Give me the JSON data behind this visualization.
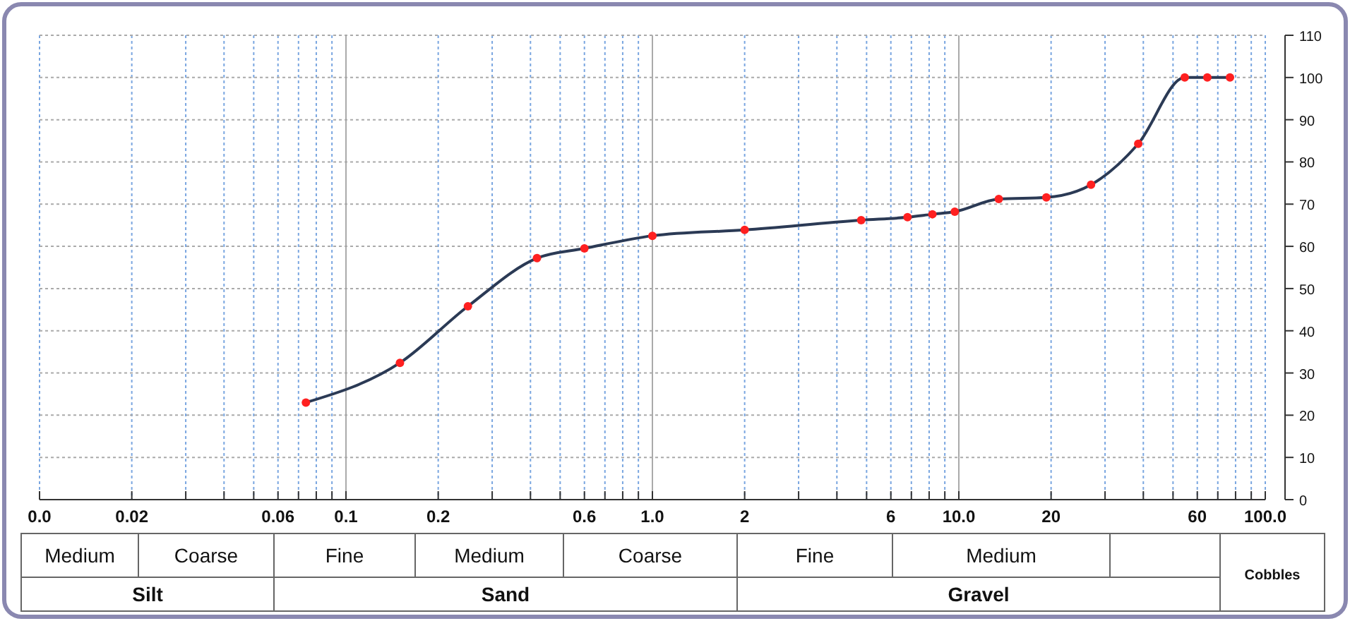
{
  "chart_data": {
    "type": "line",
    "log": "x",
    "grid": true,
    "marker": "circle",
    "line_style": "solid",
    "xlim": [
      0.01,
      100
    ],
    "ylim": [
      0,
      110
    ],
    "xticks": [
      {
        "value": 0.01,
        "label": "0.0"
      },
      0.02,
      {
        "value": 0.03,
        "label": null
      },
      {
        "value": 0.04,
        "label": null
      },
      {
        "value": 0.05,
        "label": null
      },
      0.06,
      {
        "value": 0.07,
        "label": null
      },
      {
        "value": 0.08,
        "label": null
      },
      {
        "value": 0.09,
        "label": null
      },
      0.1,
      0.2,
      {
        "value": 0.3,
        "label": null
      },
      {
        "value": 0.4,
        "label": null
      },
      {
        "value": 0.5,
        "label": null
      },
      0.6,
      {
        "value": 0.7,
        "label": null
      },
      {
        "value": 0.8,
        "label": null
      },
      {
        "value": 0.9,
        "label": null
      },
      {
        "value": 1,
        "label": "1.0"
      },
      2,
      {
        "value": 3,
        "label": null
      },
      {
        "value": 4,
        "label": null
      },
      {
        "value": 5,
        "label": null
      },
      6,
      {
        "value": 7,
        "label": null
      },
      {
        "value": 8,
        "label": null
      },
      {
        "value": 9,
        "label": null
      },
      {
        "value": 10,
        "label": "10.0"
      },
      20,
      {
        "value": 30,
        "label": null
      },
      {
        "value": 40,
        "label": null
      },
      {
        "value": 50,
        "label": null
      },
      60,
      {
        "value": 70,
        "label": null
      },
      {
        "value": 80,
        "label": null
      },
      {
        "value": 90,
        "label": null
      },
      {
        "value": 100,
        "label": "100.0"
      }
    ],
    "yticks": [
      0,
      10,
      20,
      30,
      40,
      50,
      60,
      70,
      80,
      90,
      100,
      110
    ],
    "x": [
      0.074,
      0.15,
      0.25,
      0.42,
      0.6,
      1.0,
      2.0,
      4.8,
      6.8,
      8.2,
      9.7,
      13.5,
      19.3,
      27,
      38.5,
      54.6,
      64.7,
      76.7
    ],
    "series": [
      {
        "marker": "none",
        "color": "#2b3a55",
        "values": [
          23,
          32.4,
          45.8,
          57.2,
          59.5,
          62.5,
          63.9,
          66.2,
          66.9,
          67.6,
          68.2,
          71.2,
          71.6,
          74.6,
          84.3,
          100,
          100,
          100
        ]
      },
      {
        "type": "scatter",
        "color": "#ff2020",
        "values": [
          23,
          32.4,
          45.8,
          57.2,
          59.5,
          62.5,
          63.9,
          66.2,
          66.9,
          67.6,
          68.2,
          71.2,
          71.6,
          74.6,
          84.3,
          100,
          100,
          100
        ]
      }
    ],
    "annotations": [
      "Medium",
      "Coarse",
      "Fine",
      "Medium",
      "Coarse",
      "Fine",
      "Medium",
      "Silt",
      "Sand",
      "Gravel",
      "Cobbles"
    ]
  }
}
